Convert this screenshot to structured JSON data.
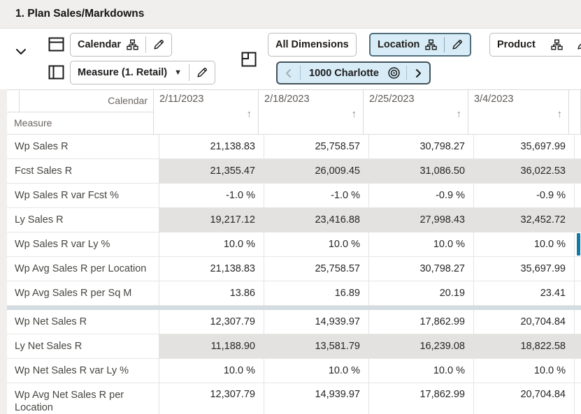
{
  "window": {
    "title": "1. Plan Sales/Markdowns"
  },
  "toolbar": {
    "rows_axis_button": {
      "label": "Calendar"
    },
    "cols_axis_button": {
      "label": "Measure (1. Retail)"
    },
    "all_dimensions_button": {
      "label": "All Dimensions"
    },
    "location_button": {
      "label": "Location"
    },
    "product_button": {
      "label": "Product"
    },
    "page_chip": {
      "label": "1000 Charlotte"
    }
  },
  "grid": {
    "corner": {
      "column_dimension": "Calendar",
      "row_dimension": "Measure"
    },
    "sort_icon_glyph": "↑",
    "columns": [
      "2/11/2023",
      "2/18/2023",
      "2/25/2023",
      "3/4/2023"
    ],
    "rows": [
      {
        "label": "Wp Sales R",
        "values": [
          "21,138.83",
          "25,758.57",
          "30,798.27",
          "35,697.99"
        ],
        "readonly": false
      },
      {
        "label": "Fcst Sales R",
        "values": [
          "21,355.47",
          "26,009.45",
          "31,086.50",
          "36,022.53"
        ],
        "readonly": true
      },
      {
        "label": "Wp Sales R var Fcst %",
        "values": [
          "-1.0 %",
          "-1.0 %",
          "-0.9 %",
          "-0.9 %"
        ],
        "readonly": false
      },
      {
        "label": "Ly Sales R",
        "values": [
          "19,217.12",
          "23,416.88",
          "27,998.43",
          "32,452.72"
        ],
        "readonly": true
      },
      {
        "label": "Wp Sales R var Ly %",
        "values": [
          "10.0 %",
          "10.0 %",
          "10.0 %",
          "10.0 %"
        ],
        "readonly": false,
        "selected_overflow": true
      },
      {
        "label": "Wp Avg Sales R per Location",
        "values": [
          "21,138.83",
          "25,758.57",
          "30,798.27",
          "35,697.99"
        ],
        "readonly": false
      },
      {
        "label": "Wp Avg Sales R per Sq M",
        "values": [
          "13.86",
          "16.89",
          "20.19",
          "23.41"
        ],
        "readonly": false,
        "group_end": true
      },
      {
        "label": "Wp Net Sales R",
        "values": [
          "12,307.79",
          "14,939.97",
          "17,862.99",
          "20,704.84"
        ],
        "readonly": false
      },
      {
        "label": "Ly Net Sales R",
        "values": [
          "11,188.90",
          "13,581.79",
          "16,239.08",
          "18,822.58"
        ],
        "readonly": true
      },
      {
        "label": "Wp Net Sales R var Ly %",
        "values": [
          "10.0 %",
          "10.0 %",
          "10.0 %",
          "10.0 %"
        ],
        "readonly": false
      },
      {
        "label": "Wp Avg Net Sales R per Location",
        "values": [
          "12,307.79",
          "14,939.97",
          "17,862.99",
          "20,704.84"
        ],
        "readonly": false,
        "last": true
      }
    ]
  },
  "colors": {
    "titlebar_bg": "#f1efed",
    "accent_light_blue": "#d7ecf6",
    "readonly_cell_bg": "#e3e2e1",
    "group_divider": "#d3dce2",
    "selection_blue": "#0e7ca4"
  }
}
